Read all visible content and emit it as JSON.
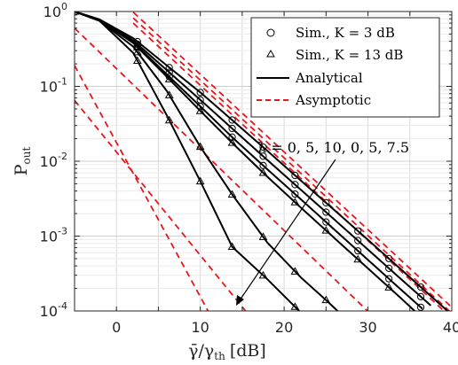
{
  "chart_data": {
    "type": "line",
    "xlabel_main": "γ̄/γ",
    "xlabel_sub": "th",
    "xlabel_unit": "[dB]",
    "ylabel_main": "P",
    "ylabel_sub": "out",
    "xlim": [
      -5,
      40
    ],
    "ylim_log10": [
      -4,
      0
    ],
    "y_scale": "log",
    "grid": "on (major and minor)",
    "x_ticks": [
      0,
      10,
      20,
      30,
      40
    ],
    "y_ticks": [
      {
        "base": "10",
        "exp": "0"
      },
      {
        "base": "10",
        "exp": "-1"
      },
      {
        "base": "10",
        "exp": "-2"
      },
      {
        "base": "10",
        "exp": "-3"
      },
      {
        "base": "10",
        "exp": "-4"
      }
    ],
    "legend_position": "top-right",
    "legend": [
      {
        "marker": "circle",
        "label": "Sim., K = 3 dB"
      },
      {
        "marker": "triangle",
        "label": "Sim., K = 13 dB"
      },
      {
        "line": "solid black",
        "label": "Analytical"
      },
      {
        "line": "dashed red",
        "label": "Asymptotic"
      }
    ],
    "annotation": "λ = 0, 5, 10, 0, 5, 7.5",
    "colors": {
      "analytical": "#000000",
      "asymptotic": "#e8161b",
      "grid": "#d9d9d9"
    },
    "series": [
      {
        "K_dB": 3,
        "lambda": 0,
        "x": [
          -5,
          -2,
          2,
          6,
          10,
          14,
          18,
          22,
          26,
          30,
          34,
          38,
          40
        ],
        "pout": [
          1.0,
          0.78,
          0.44,
          0.19,
          0.083,
          0.034,
          0.0138,
          0.0055,
          0.00222,
          0.00089,
          0.000355,
          0.000141,
          8.9e-05
        ]
      },
      {
        "K_dB": 3,
        "lambda": 5,
        "x": [
          -5,
          -2,
          2,
          6,
          10,
          14,
          18,
          22,
          26,
          30,
          34,
          37.5
        ],
        "pout": [
          1.0,
          0.78,
          0.41,
          0.165,
          0.066,
          0.0262,
          0.0104,
          0.00415,
          0.00166,
          0.00066,
          0.000263,
          0.000118
        ]
      },
      {
        "K_dB": 3,
        "lambda": 10,
        "x": [
          -5,
          -2,
          2,
          6,
          10,
          14,
          18,
          22,
          26,
          30,
          34,
          36.5
        ],
        "pout": [
          1.0,
          0.77,
          0.39,
          0.145,
          0.054,
          0.02,
          0.0078,
          0.0031,
          0.00122,
          0.00048,
          0.00019,
          0.000107
        ]
      },
      {
        "K_dB": 13,
        "lambda": 0,
        "x": [
          -5,
          -2,
          2,
          6,
          10,
          13.8,
          18,
          22,
          24
        ],
        "pout": [
          1.0,
          0.75,
          0.28,
          0.041,
          0.0054,
          0.00072,
          0.000265,
          9.5e-05,
          6e-05
        ]
      },
      {
        "K_dB": 13,
        "lambda": 5,
        "x": [
          -5,
          -2,
          2,
          6,
          10,
          13.8,
          18,
          22,
          25,
          28.5
        ],
        "pout": [
          1.0,
          0.75,
          0.34,
          0.087,
          0.0156,
          0.0036,
          0.00082,
          0.00028,
          0.00014,
          6e-05
        ]
      },
      {
        "K_dB": 13,
        "lambda": 7.5,
        "x": [
          -5,
          -2,
          2,
          6,
          10,
          14,
          18,
          22,
          26,
          30,
          34,
          36.5
        ],
        "pout": [
          1.0,
          0.76,
          0.38,
          0.135,
          0.047,
          0.0168,
          0.0062,
          0.0024,
          0.00094,
          0.00037,
          0.000146,
          8e-05
        ]
      }
    ],
    "sim_markers": [
      {
        "K_dB": 3,
        "marker": "circle",
        "x": [
          2.5,
          6.3,
          10,
          13.8,
          17.5,
          21.3,
          25,
          28.8,
          32.5,
          36.3
        ]
      },
      {
        "K_dB": 13,
        "marker": "triangle",
        "x": [
          2.5,
          6.3,
          10,
          13.8,
          17.5,
          21.3,
          25,
          28.8,
          32.5,
          36.3
        ]
      }
    ],
    "asymptotic": [
      {
        "x": [
          2,
          40
        ],
        "pout": [
          0.98,
          0.000112
        ]
      },
      {
        "x": [
          2,
          40
        ],
        "pout": [
          0.82,
          9.3e-05
        ]
      },
      {
        "x": [
          2,
          40
        ],
        "pout": [
          0.7,
          8e-05
        ]
      },
      {
        "x": [
          -5,
          12
        ],
        "pout": [
          0.19,
          6e-05
        ]
      },
      {
        "x": [
          -5,
          17
        ],
        "pout": [
          0.065,
          6e-05
        ]
      },
      {
        "x": [
          -5,
          32
        ],
        "pout": [
          0.6,
          6e-05
        ]
      }
    ]
  }
}
